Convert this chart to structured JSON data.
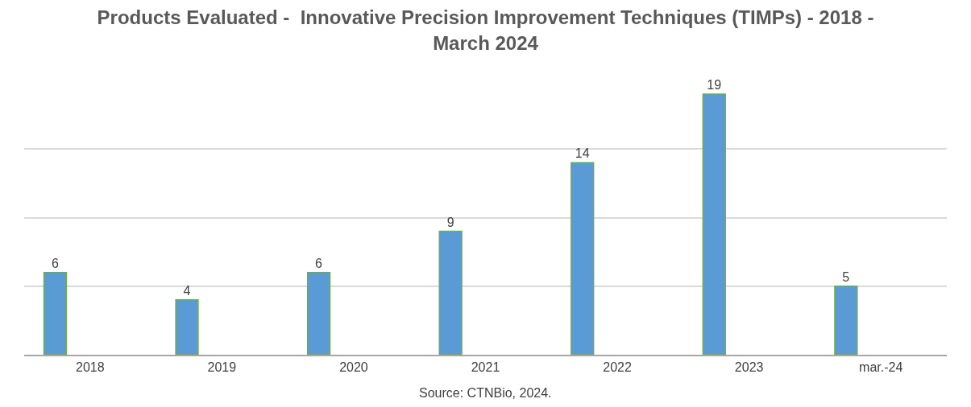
{
  "chart_data": {
    "type": "bar",
    "title": "Products Evaluated -  Innovative Precision Improvement Techniques (TIMPs) - 2018 - March 2024",
    "categories": [
      "2018",
      "2019",
      "2020",
      "2021",
      "2022",
      "2023",
      "mar.-24"
    ],
    "values": [
      6,
      4,
      6,
      9,
      14,
      19,
      5
    ],
    "color": "#5b9bd5",
    "tick_labels": "x",
    "grid": "y",
    "data_labels": true,
    "annotations": [
      "Source: CTNBio, 2024."
    ]
  }
}
